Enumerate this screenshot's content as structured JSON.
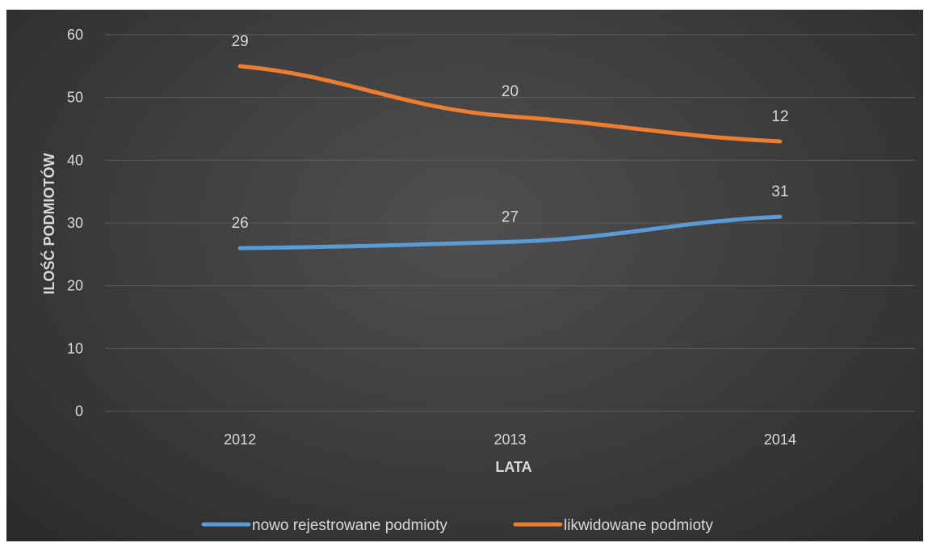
{
  "chart_data": {
    "type": "line",
    "categories": [
      "2012",
      "2013",
      "2014"
    ],
    "series": [
      {
        "name": "nowo rejestrowane podmioty",
        "values": [
          26,
          27,
          31
        ],
        "labels": [
          "26",
          "27",
          "31"
        ],
        "color": "#5b9bd5"
      },
      {
        "name": "likwidowane podmioty",
        "values": [
          55,
          47,
          43
        ],
        "labels": [
          "29",
          "20",
          "12"
        ],
        "color": "#ed7d31"
      }
    ],
    "xlabel": "LATA",
    "ylabel": "ILOŚĆ PODMIOTÓW",
    "ylim": [
      0,
      60
    ],
    "yticks": [
      0,
      10,
      20,
      30,
      40,
      50,
      60
    ],
    "grid": true,
    "legend_position": "bottom"
  }
}
